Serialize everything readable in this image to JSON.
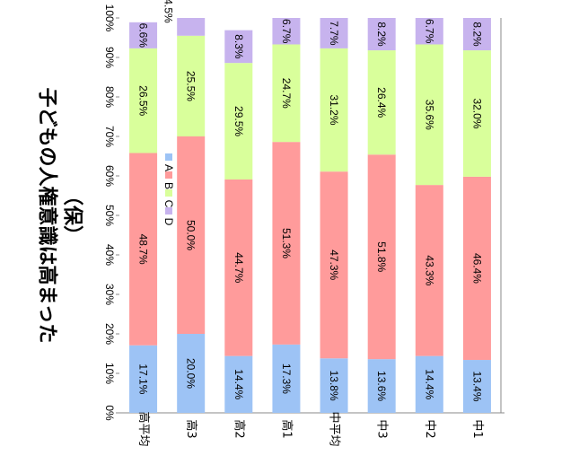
{
  "chart_data": {
    "type": "bar",
    "stacked": true,
    "orientation": "rotated-90-clockwise",
    "title_lines": [
      "子どもの人権意識は高まった",
      "（保）"
    ],
    "categories": [
      "中1",
      "中2",
      "中3",
      "中平均",
      "高1",
      "高2",
      "高3",
      "高平均"
    ],
    "series": [
      {
        "name": "A",
        "color": "#9DC3F5",
        "values": [
          13.4,
          14.4,
          13.6,
          13.8,
          17.3,
          14.4,
          20.0,
          17.1
        ]
      },
      {
        "name": "B",
        "color": "#FF9B9B",
        "values": [
          46.4,
          43.3,
          51.8,
          47.3,
          51.3,
          44.7,
          50.0,
          48.7
        ]
      },
      {
        "name": "C",
        "color": "#D9FF9B",
        "values": [
          32.0,
          35.6,
          26.4,
          31.2,
          24.7,
          29.5,
          25.5,
          26.5
        ]
      },
      {
        "name": "D",
        "color": "#C7B3EE",
        "values": [
          8.2,
          6.7,
          8.2,
          7.7,
          6.7,
          8.3,
          4.5,
          6.6
        ]
      }
    ],
    "data_labels": {
      "A": [
        "13.4%",
        "14.4%",
        "13.6%",
        "13.8%",
        "17.3%",
        "14.4%",
        "20.0%",
        "17.1%"
      ],
      "B": [
        "46.4%",
        "43.3%",
        "51.8%",
        "47.3%",
        "51.3%",
        "44.7%",
        "50.0%",
        "48.7%"
      ],
      "C": [
        "32.0%",
        "35.6%",
        "26.4%",
        "31.2%",
        "24.7%",
        "29.5%",
        "25.5%",
        "26.5%"
      ],
      "D": [
        "8.2%",
        "6.7%",
        "8.2%",
        "7.7%",
        "6.7%",
        "8.3%",
        "4.5%",
        "6.6%"
      ]
    },
    "value_axis": {
      "range": [
        0,
        100
      ],
      "tick_labels": [
        "0%",
        "10%",
        "20%",
        "30%",
        "40%",
        "50%",
        "60%",
        "70%",
        "80%",
        "90%",
        "100%"
      ]
    },
    "grid": false,
    "legend": {
      "position": "right",
      "entries": [
        "A",
        "B",
        "C",
        "D"
      ]
    }
  }
}
